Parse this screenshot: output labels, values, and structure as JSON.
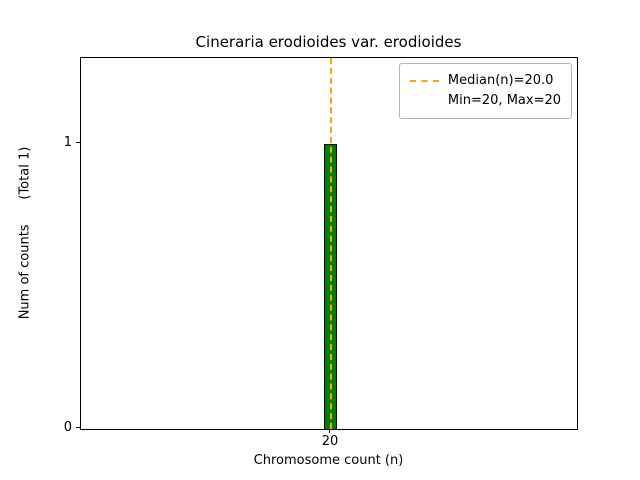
{
  "chart_data": {
    "type": "bar",
    "title": "Cineraria erodioides var. erodioides",
    "xlabel": "Chromosome count (n)",
    "ylabel": "Num of counts      (Total 1)",
    "categories": [
      "20"
    ],
    "values": [
      1
    ],
    "total_counts": 1,
    "median": 20.0,
    "min": 20,
    "max": 20,
    "ylim": [
      0,
      1.3
    ],
    "yticks": [
      "0",
      "1"
    ],
    "xticks": [
      "20"
    ],
    "bar_color": "#008000",
    "bar_edge_color": "#000000",
    "median_line_color": "#ffa500",
    "legend_entries": [
      "Median(n)=20.0",
      "Min=20, Max=20"
    ],
    "legend_position": "upper right",
    "grid": false
  }
}
